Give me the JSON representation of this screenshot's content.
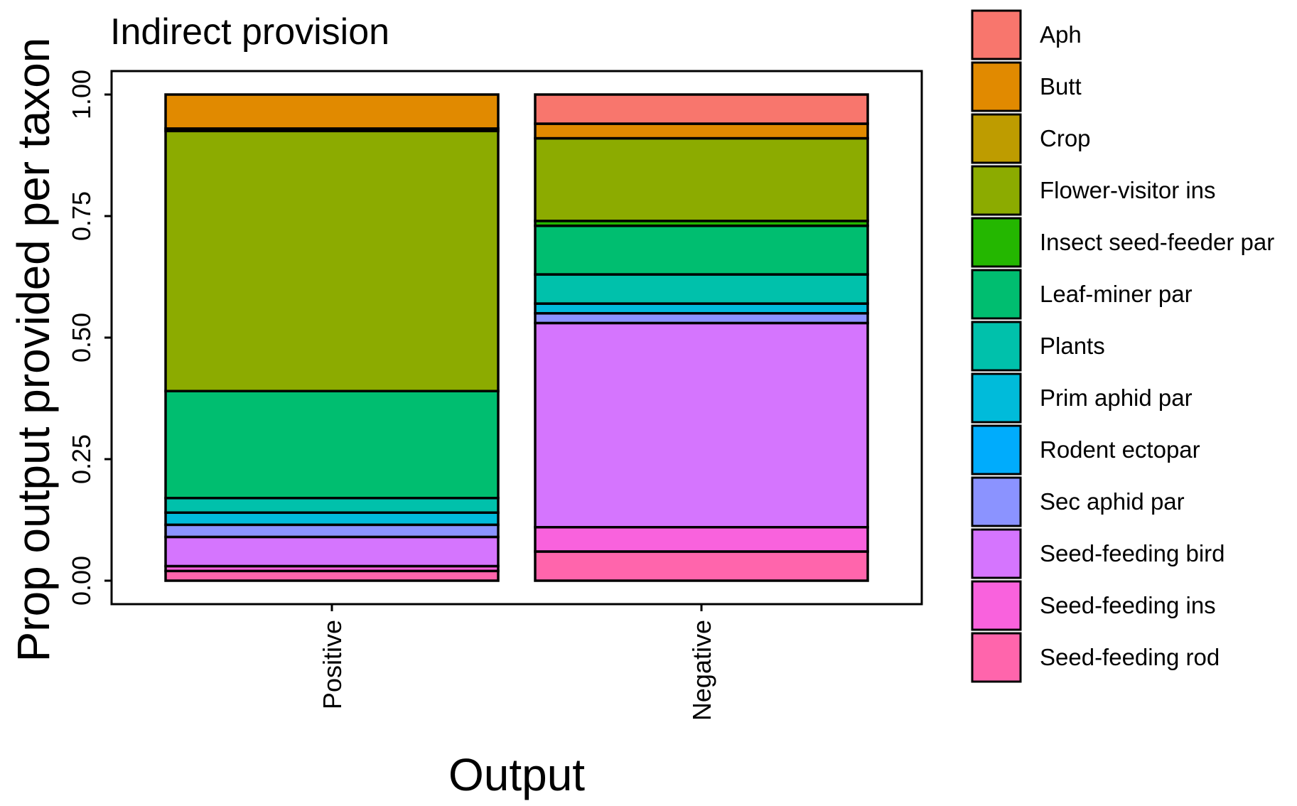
{
  "chart_data": {
    "type": "bar",
    "stacked": true,
    "title": "Indirect provision",
    "xlabel": "Output",
    "ylabel": "Prop output provided per taxon",
    "ylim": [
      0,
      1
    ],
    "yticks": [
      "0.00",
      "0.25",
      "0.50",
      "0.75",
      "1.00"
    ],
    "ytick_values": [
      0,
      0.25,
      0.5,
      0.75,
      1.0
    ],
    "grid": false,
    "legend_position": "right",
    "categories": [
      "Positive",
      "Negative"
    ],
    "series": [
      {
        "name": "Aph",
        "color": "#F8766D",
        "values": [
          0.0,
          0.06
        ]
      },
      {
        "name": "Butt",
        "color": "#E18A00",
        "values": [
          0.07,
          0.03
        ]
      },
      {
        "name": "Crop",
        "color": "#BE9C00",
        "values": [
          0.005,
          0.0
        ]
      },
      {
        "name": "Flower-visitor ins",
        "color": "#8CAB00",
        "values": [
          0.535,
          0.17
        ]
      },
      {
        "name": "Insect seed-feeder par",
        "color": "#24B700",
        "values": [
          0.0,
          0.01
        ]
      },
      {
        "name": "Leaf-miner par",
        "color": "#00BE70",
        "values": [
          0.22,
          0.1
        ]
      },
      {
        "name": "Plants",
        "color": "#00C1AB",
        "values": [
          0.03,
          0.06
        ]
      },
      {
        "name": "Prim aphid par",
        "color": "#00BBDA",
        "values": [
          0.025,
          0.02
        ]
      },
      {
        "name": "Rodent ectopar",
        "color": "#00ACFC",
        "values": [
          0.0,
          0.0
        ]
      },
      {
        "name": "Sec aphid par",
        "color": "#8B93FF",
        "values": [
          0.025,
          0.02
        ]
      },
      {
        "name": "Seed-feeding bird",
        "color": "#D575FE",
        "values": [
          0.06,
          0.42
        ]
      },
      {
        "name": "Seed-feeding ins",
        "color": "#F962DD",
        "values": [
          0.01,
          0.05
        ]
      },
      {
        "name": "Seed-feeding rod",
        "color": "#FF65AC",
        "values": [
          0.02,
          0.06
        ]
      }
    ]
  }
}
